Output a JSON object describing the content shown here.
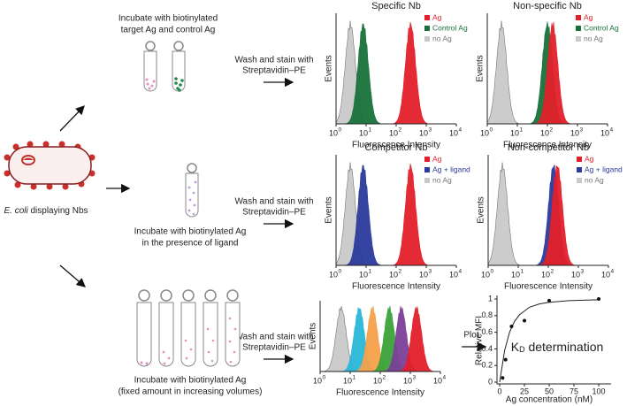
{
  "cell": {
    "label_italic": "E. coli",
    "label_rest": " displaying Nbs"
  },
  "steps": [
    {
      "incubate": [
        "Incubate with biotinylated",
        "target Ag and control Ag"
      ],
      "wash": [
        "Wash and stain with",
        "Streptavidin–PE"
      ]
    },
    {
      "incubate": [
        "Incubate with biotinylated Ag",
        "in the presence of ligand"
      ],
      "wash": [
        "Wash and stain with",
        "Streptavidin–PE"
      ]
    },
    {
      "incubate": [
        "Incubate with biotinylated Ag",
        "(fixed amount in increasing volumes)"
      ],
      "wash": [
        "Wash and stain with",
        "Streptavidin–PE"
      ],
      "plot": "Plot"
    }
  ],
  "histograms": {
    "type": "histogram",
    "log_x": true,
    "y_label": "Events",
    "x_label": "Fluorescence Intensity",
    "xlim": [
      1,
      10000
    ],
    "xticks": [
      {
        "value": 1,
        "label": "10",
        "exponent": "0"
      },
      {
        "value": 10,
        "label": "10",
        "exponent": "1"
      },
      {
        "value": 100,
        "label": "10",
        "exponent": "2"
      },
      {
        "value": 1000,
        "label": "10",
        "exponent": "3"
      },
      {
        "value": 10000,
        "label": "10",
        "exponent": "4"
      }
    ],
    "panels": [
      {
        "title": "Specific Nb",
        "series": [
          {
            "name": "Ag",
            "color": "#e3202a",
            "peak": 300
          },
          {
            "name": "Control Ag",
            "color": "#17713a",
            "peak": 8
          },
          {
            "name": "no Ag",
            "color": "#c9c9c9",
            "peak": 3
          }
        ]
      },
      {
        "title": "Non-specific Nb",
        "series": [
          {
            "name": "Ag",
            "color": "#e3202a",
            "peak": 150
          },
          {
            "name": "Control Ag",
            "color": "#17713a",
            "peak": 100
          },
          {
            "name": "no Ag",
            "color": "#c9c9c9",
            "peak": 3
          }
        ]
      },
      {
        "title": "Competitor Nb",
        "series": [
          {
            "name": "Ag",
            "color": "#e3202a",
            "peak": 300
          },
          {
            "name": "Ag + ligand",
            "color": "#2b3a9c",
            "peak": 8
          },
          {
            "name": "no Ag",
            "color": "#c9c9c9",
            "peak": 3
          }
        ]
      },
      {
        "title": "Non-competitor Nb",
        "series": [
          {
            "name": "Ag",
            "color": "#e3202a",
            "peak": 200
          },
          {
            "name": "Ag + ligand",
            "color": "#2b3a9c",
            "peak": 150
          },
          {
            "name": "no Ag",
            "color": "#c9c9c9",
            "peak": 3
          }
        ]
      },
      {
        "series": [
          {
            "color": "#e3202a",
            "peak": 1600
          },
          {
            "color": "#7b3f98",
            "peak": 500
          },
          {
            "color": "#3aa23a",
            "peak": 200
          },
          {
            "color": "#f5a04a",
            "peak": 55
          },
          {
            "color": "#2ab7d8",
            "peak": 20
          },
          {
            "color": "#c9c9c9",
            "peak": 5
          }
        ]
      }
    ]
  },
  "kd_plot": {
    "type": "scatter",
    "annotation": {
      "main": "K",
      "sub": "D",
      "rest": " determination"
    },
    "x_label": "Ag concentration (nM)",
    "y_label": "Relative MFI",
    "xlim": [
      0,
      100
    ],
    "ylim": [
      0,
      1
    ],
    "xticks": [
      0,
      25,
      50,
      75,
      100
    ],
    "yticks": [
      0,
      0.2,
      0.4,
      0.6,
      0.8,
      1
    ],
    "x": [
      3,
      6,
      12,
      25,
      50,
      100
    ],
    "values": [
      0.05,
      0.27,
      0.67,
      0.74,
      0.98,
      1.0
    ],
    "fit": {
      "x": [
        0,
        5,
        10,
        15,
        20,
        30,
        40,
        50,
        70,
        100
      ],
      "values": [
        0,
        0.38,
        0.6,
        0.73,
        0.81,
        0.9,
        0.94,
        0.96,
        0.98,
        0.99
      ]
    }
  }
}
